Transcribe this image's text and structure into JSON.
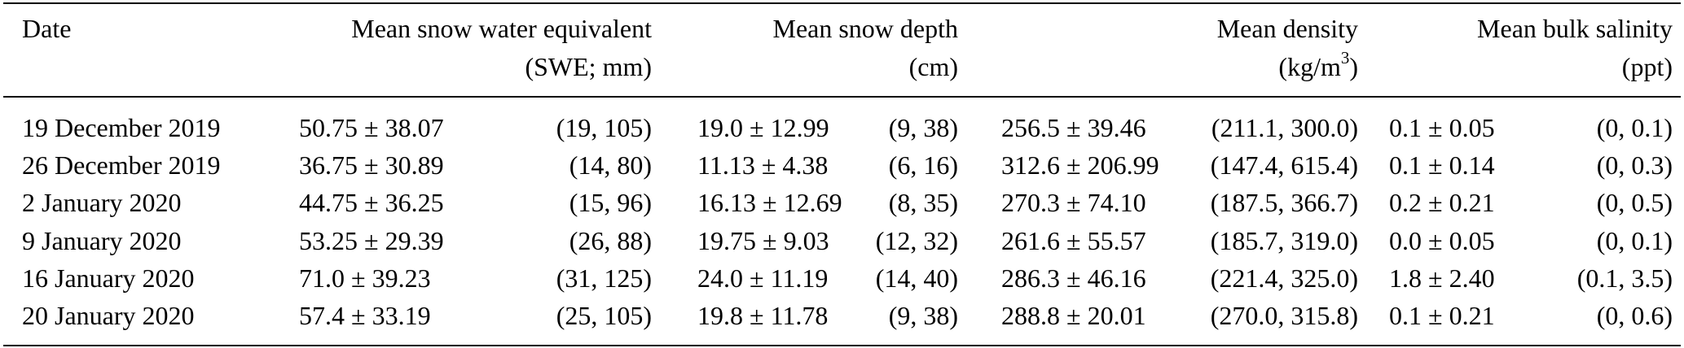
{
  "headers": {
    "date": "Date",
    "swe_line1": "Mean snow water equivalent",
    "swe_line2": "(SWE; mm)",
    "depth_line1": "Mean snow depth",
    "depth_line2": "(cm)",
    "density_line1": "Mean density",
    "density_line2_pre": "(kg/m",
    "density_line2_sup": "3",
    "density_line2_post": ")",
    "salinity_line1": "Mean bulk salinity",
    "salinity_line2": "(ppt)"
  },
  "rows": [
    {
      "date": "19 December 2019",
      "swe": "50.75 ± 38.07",
      "swe_range": "(19, 105)",
      "depth": "19.0 ± 12.99",
      "depth_range": "(9, 38)",
      "density": "256.5 ± 39.46",
      "density_range": "(211.1, 300.0)",
      "salinity": "0.1 ± 0.05",
      "salinity_range": "(0, 0.1)"
    },
    {
      "date": "26 December 2019",
      "swe": "36.75 ± 30.89",
      "swe_range": "(14, 80)",
      "depth": "11.13 ± 4.38",
      "depth_range": "(6, 16)",
      "density": "312.6 ± 206.99",
      "density_range": "(147.4, 615.4)",
      "salinity": "0.1 ± 0.14",
      "salinity_range": "(0, 0.3)"
    },
    {
      "date": "2 January 2020",
      "swe": "44.75 ± 36.25",
      "swe_range": "(15, 96)",
      "depth": "16.13 ± 12.69",
      "depth_range": "(8, 35)",
      "density": "270.3 ± 74.10",
      "density_range": "(187.5, 366.7)",
      "salinity": "0.2 ± 0.21",
      "salinity_range": "(0, 0.5)"
    },
    {
      "date": "9 January 2020",
      "swe": "53.25 ± 29.39",
      "swe_range": "(26, 88)",
      "depth": "19.75 ± 9.03",
      "depth_range": "(12, 32)",
      "density": "261.6 ± 55.57",
      "density_range": "(185.7, 319.0)",
      "salinity": "0.0 ± 0.05",
      "salinity_range": "(0, 0.1)"
    },
    {
      "date": "16 January 2020",
      "swe": "71.0 ± 39.23",
      "swe_range": "(31, 125)",
      "depth": "24.0 ± 11.19",
      "depth_range": "(14, 40)",
      "density": "286.3 ± 46.16",
      "density_range": "(221.4, 325.0)",
      "salinity": "1.8 ± 2.40",
      "salinity_range": "(0.1, 3.5)"
    },
    {
      "date": "20 January 2020",
      "swe": "57.4 ± 33.19",
      "swe_range": "(25, 105)",
      "depth": "19.8 ± 11.78",
      "depth_range": "(9, 38)",
      "density": "288.8 ± 20.01",
      "density_range": "(270.0, 315.8)",
      "salinity": "0.1 ± 0.21",
      "salinity_range": "(0, 0.6)"
    }
  ]
}
